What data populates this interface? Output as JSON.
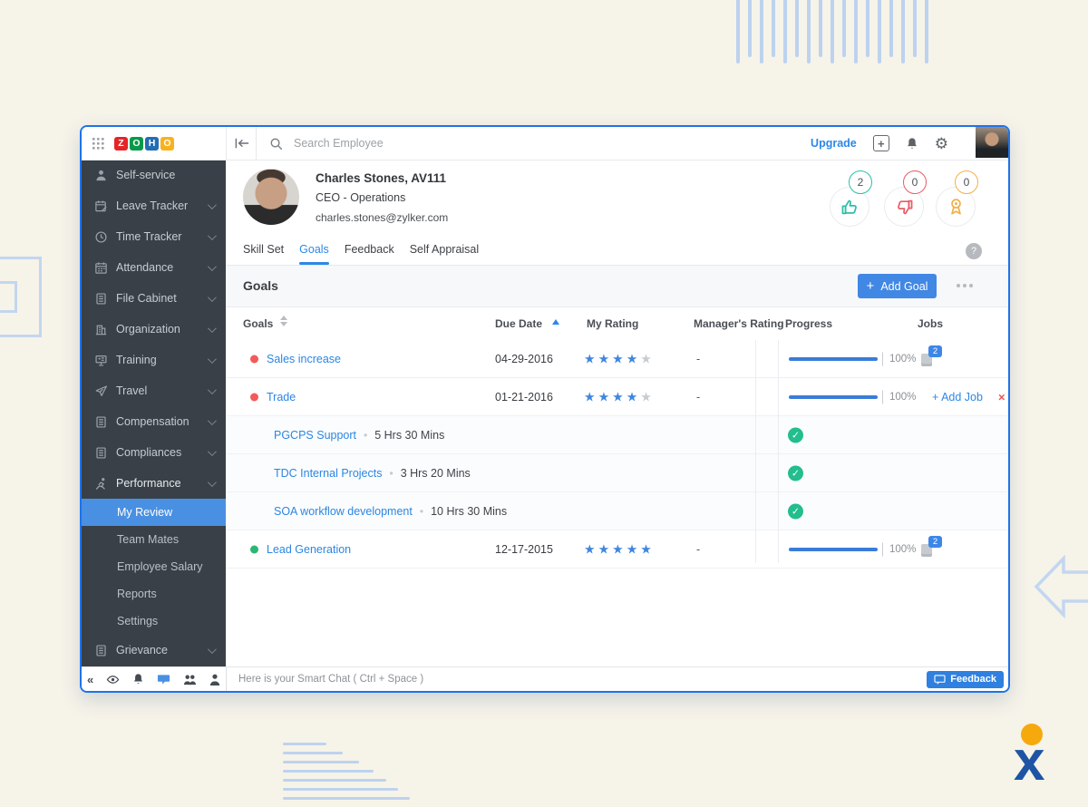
{
  "topbar": {
    "upgrade_label": "Upgrade",
    "search_placeholder": "Search Employee",
    "logo_letters": [
      {
        "ch": "Z",
        "bg": "#e42527"
      },
      {
        "ch": "O",
        "bg": "#089949"
      },
      {
        "ch": "H",
        "bg": "#226db4"
      },
      {
        "ch": "O",
        "bg": "#f9b21d"
      }
    ]
  },
  "sidebar": {
    "items": [
      {
        "label": "Self-service",
        "icon": "person",
        "chevron": false
      },
      {
        "label": "Leave Tracker",
        "icon": "calendar-edit",
        "chevron": true
      },
      {
        "label": "Time Tracker",
        "icon": "clock",
        "chevron": true
      },
      {
        "label": "Attendance",
        "icon": "calendar",
        "chevron": true
      },
      {
        "label": "File Cabinet",
        "icon": "list",
        "chevron": true
      },
      {
        "label": "Organization",
        "icon": "building",
        "chevron": true
      },
      {
        "label": "Training",
        "icon": "training",
        "chevron": true
      },
      {
        "label": "Travel",
        "icon": "plane",
        "chevron": true
      },
      {
        "label": "Compensation",
        "icon": "list",
        "chevron": true
      },
      {
        "label": "Compliances",
        "icon": "list",
        "chevron": true
      },
      {
        "label": "Performance",
        "icon": "runner",
        "chevron": true,
        "expanded": true
      }
    ],
    "sub_items": [
      {
        "label": "My Review",
        "active": true
      },
      {
        "label": "Team Mates"
      },
      {
        "label": "Employee Salary"
      },
      {
        "label": "Reports"
      },
      {
        "label": "Settings"
      }
    ],
    "tail_items": [
      {
        "label": "Grievance",
        "icon": "list",
        "chevron": true
      }
    ]
  },
  "profile": {
    "name": "Charles Stones, AV111",
    "role": "CEO - Operations",
    "email": "charles.stones@zylker.com",
    "badges": [
      {
        "icon": "thumbs-up",
        "count": "2",
        "color": "#2bbfa8"
      },
      {
        "icon": "thumbs-down",
        "count": "0",
        "color": "#e85b66"
      },
      {
        "icon": "medal",
        "count": "0",
        "color": "#f2b04a"
      }
    ]
  },
  "tabs": {
    "items": [
      {
        "label": "Skill Set"
      },
      {
        "label": "Goals",
        "active": true
      },
      {
        "label": "Feedback"
      },
      {
        "label": "Self Appraisal"
      }
    ],
    "help_label": "?"
  },
  "goals_section": {
    "title": "Goals",
    "add_goal_plus": "+",
    "add_goal_label": "Add Goal"
  },
  "table": {
    "columns": [
      "Goals",
      "Due Date",
      "My Rating",
      "Manager's Rating",
      "Progress",
      "Jobs"
    ],
    "rows": [
      {
        "kind": "goal",
        "dot_color": "#f15b5b",
        "name": "Sales increase",
        "due": "04-29-2016",
        "my_rating": 4,
        "manager_rating": "-",
        "progress_pct": "100%",
        "jobs": {
          "kind": "count",
          "count": "2"
        }
      },
      {
        "kind": "goal",
        "dot_color": "#f15b5b",
        "name": "Trade",
        "due": "01-21-2016",
        "my_rating": 4,
        "manager_rating": "-",
        "progress_pct": "100%",
        "jobs": {
          "kind": "add",
          "label": "+ Add Job",
          "close_label": "×"
        }
      },
      {
        "kind": "job",
        "name": "PGCPS Support",
        "duration": "5 Hrs 30 Mins",
        "completed": true
      },
      {
        "kind": "job",
        "name": "TDC Internal Projects",
        "duration": "3 Hrs 20 Mins",
        "completed": true
      },
      {
        "kind": "job",
        "name": "SOA workflow development",
        "duration": "10 Hrs 30 Mins",
        "completed": true
      },
      {
        "kind": "goal",
        "dot_color": "#2bb673",
        "name": "Lead Generation",
        "due": "12-17-2015",
        "my_rating": 5,
        "manager_rating": "-",
        "progress_pct": "100%",
        "jobs": {
          "kind": "count",
          "count": "2"
        }
      }
    ]
  },
  "statusbar": {
    "chat_placeholder": "Here is your Smart Chat ( Ctrl + Space )",
    "feedback_label": "Feedback"
  },
  "decor": {
    "zoho_x_letter": "x"
  }
}
